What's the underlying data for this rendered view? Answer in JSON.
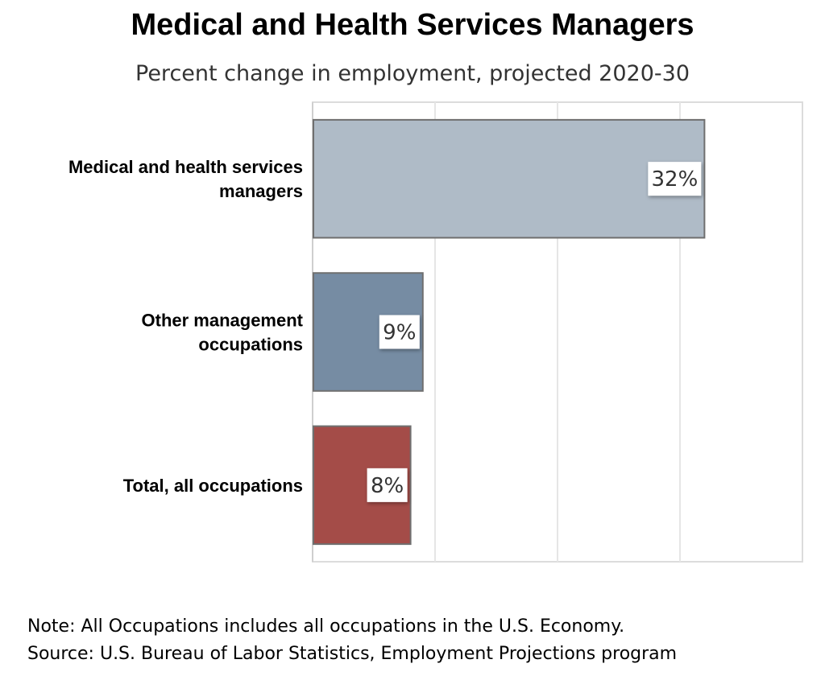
{
  "chart_data": {
    "type": "bar",
    "orientation": "horizontal",
    "title": "Medical and Health Services Managers",
    "subtitle": "Percent change in employment, projected 2020-30",
    "categories": [
      [
        "Medical and health services",
        "managers"
      ],
      [
        "Other management",
        "occupations"
      ],
      [
        "Total, all occupations"
      ]
    ],
    "values": [
      32,
      9,
      8
    ],
    "data_labels": [
      "32%",
      "9%",
      "8%"
    ],
    "colors": [
      "#afbbc7",
      "#768ca3",
      "#a44c48"
    ],
    "xlim": [
      0,
      40
    ],
    "grid": true,
    "legend": "none"
  },
  "notes": {
    "note": "Note: All Occupations includes all occupations in the U.S. Economy.",
    "source": "Source: U.S. Bureau of Labor Statistics, Employment Projections program"
  }
}
